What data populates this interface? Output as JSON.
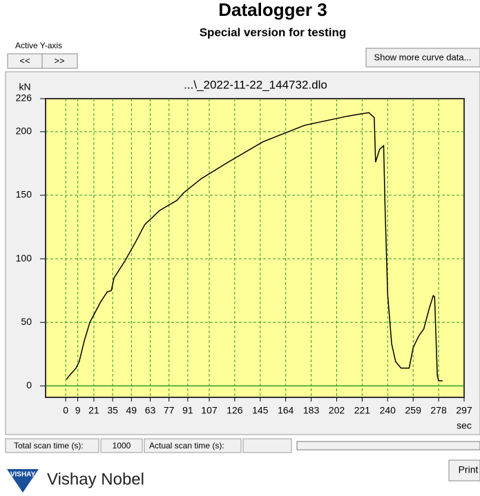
{
  "header": {
    "title": "Datalogger 3",
    "subtitle": "Special version for testing"
  },
  "controls": {
    "active_axis_label": "Active Y-axis",
    "prev_button": "<<",
    "next_button": ">>",
    "more_button": "Show more curve data...",
    "print_button": "Print"
  },
  "chart_data": {
    "type": "line",
    "title": "...\\_2022-11-22_144732.dlo",
    "x_label": "sec",
    "y_label": "kN",
    "x": [
      0.5,
      2.6,
      7.7,
      10,
      14,
      18,
      22,
      26,
      31,
      34,
      36,
      44,
      52,
      59,
      70,
      83,
      88,
      101,
      121,
      147,
      178,
      209,
      220,
      226,
      230,
      231,
      234,
      237,
      238,
      240,
      243,
      246,
      250,
      256,
      259,
      263,
      267,
      271,
      274,
      275,
      277,
      278,
      281
    ],
    "values": [
      5,
      8,
      14,
      19,
      36,
      50,
      58,
      66,
      74,
      75,
      85,
      98,
      113,
      127,
      138,
      146,
      152,
      163,
      176,
      192,
      205,
      212,
      214,
      215,
      211,
      176,
      186,
      189,
      143,
      72,
      33,
      19,
      14,
      14,
      30,
      39,
      45,
      61,
      71,
      70,
      8,
      4,
      4
    ],
    "color": "#000000",
    "xlim": [
      -15,
      297
    ],
    "xticks": [
      0,
      9,
      21,
      35,
      49,
      63,
      77,
      91,
      107,
      126,
      145,
      164,
      183,
      202,
      221,
      240,
      259,
      278,
      297
    ],
    "ylim": [
      -9,
      226
    ],
    "yticks": [
      0,
      50,
      100,
      150,
      200,
      226
    ],
    "grid": true
  },
  "status": {
    "total_label": "Total scan time (s):",
    "total_value": 1000,
    "actual_label": "Actual scan time (s):"
  },
  "footer": {
    "logo_text": "VISHAY",
    "brand": "Vishay Nobel"
  }
}
